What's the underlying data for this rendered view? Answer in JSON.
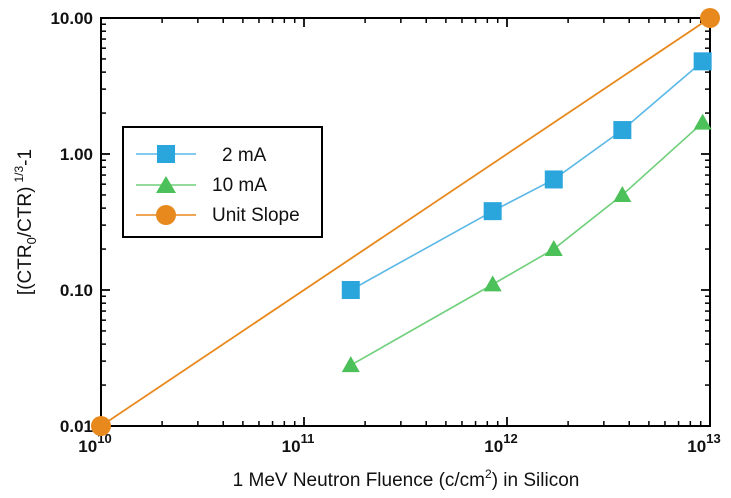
{
  "chart_data": {
    "type": "line",
    "xscale": "log",
    "yscale": "log",
    "xlim": [
      10000000000.0,
      10000000000000.0
    ],
    "ylim": [
      0.01,
      10.0
    ],
    "grid": false,
    "legend_position": "left-middle",
    "xlabel": {
      "pre": "1 MeV Neutron Fluence (c/cm",
      "sup": "2",
      "post": ") in Silicon"
    },
    "ylabel": {
      "pre": "[(CTR",
      "sub": "0",
      "mid": "/CTR)",
      "sup": "1/3",
      "post": "-1"
    },
    "x_ticks": [
      {
        "value": 10000000000.0,
        "base": "10",
        "exp": "10"
      },
      {
        "value": 100000000000.0,
        "base": "10",
        "exp": "11"
      },
      {
        "value": 1000000000000.0,
        "base": "10",
        "exp": "12"
      },
      {
        "value": 10000000000000.0,
        "base": "10",
        "exp": "13"
      }
    ],
    "y_ticks": [
      {
        "value": 0.01,
        "label": "0.01"
      },
      {
        "value": 0.1,
        "label": "0.10"
      },
      {
        "value": 1,
        "label": "1.00"
      },
      {
        "value": 10,
        "label": "10.00"
      }
    ],
    "series": [
      {
        "name": "2 mA",
        "marker": "square",
        "color": "#2aa6dd",
        "line_color": "#5bb8e6",
        "x": [
          170000000000.0,
          850000000000.0,
          1700000000000.0,
          3700000000000.0,
          9200000000000.0
        ],
        "y": [
          0.1,
          0.38,
          0.65,
          1.5,
          4.8
        ]
      },
      {
        "name": "10 mA",
        "marker": "triangle",
        "color": "#4cc059",
        "line_color": "#6fcf7a",
        "x": [
          170000000000.0,
          850000000000.0,
          1700000000000.0,
          3700000000000.0,
          9200000000000.0
        ],
        "y": [
          0.028,
          0.11,
          0.2,
          0.5,
          1.7
        ]
      },
      {
        "name": "Unit Slope",
        "marker": "circle",
        "color": "#e8891d",
        "line_color": "#e8891d",
        "x": [
          10000000000.0,
          10000000000000.0
        ],
        "y": [
          0.01,
          10.0
        ]
      }
    ]
  }
}
